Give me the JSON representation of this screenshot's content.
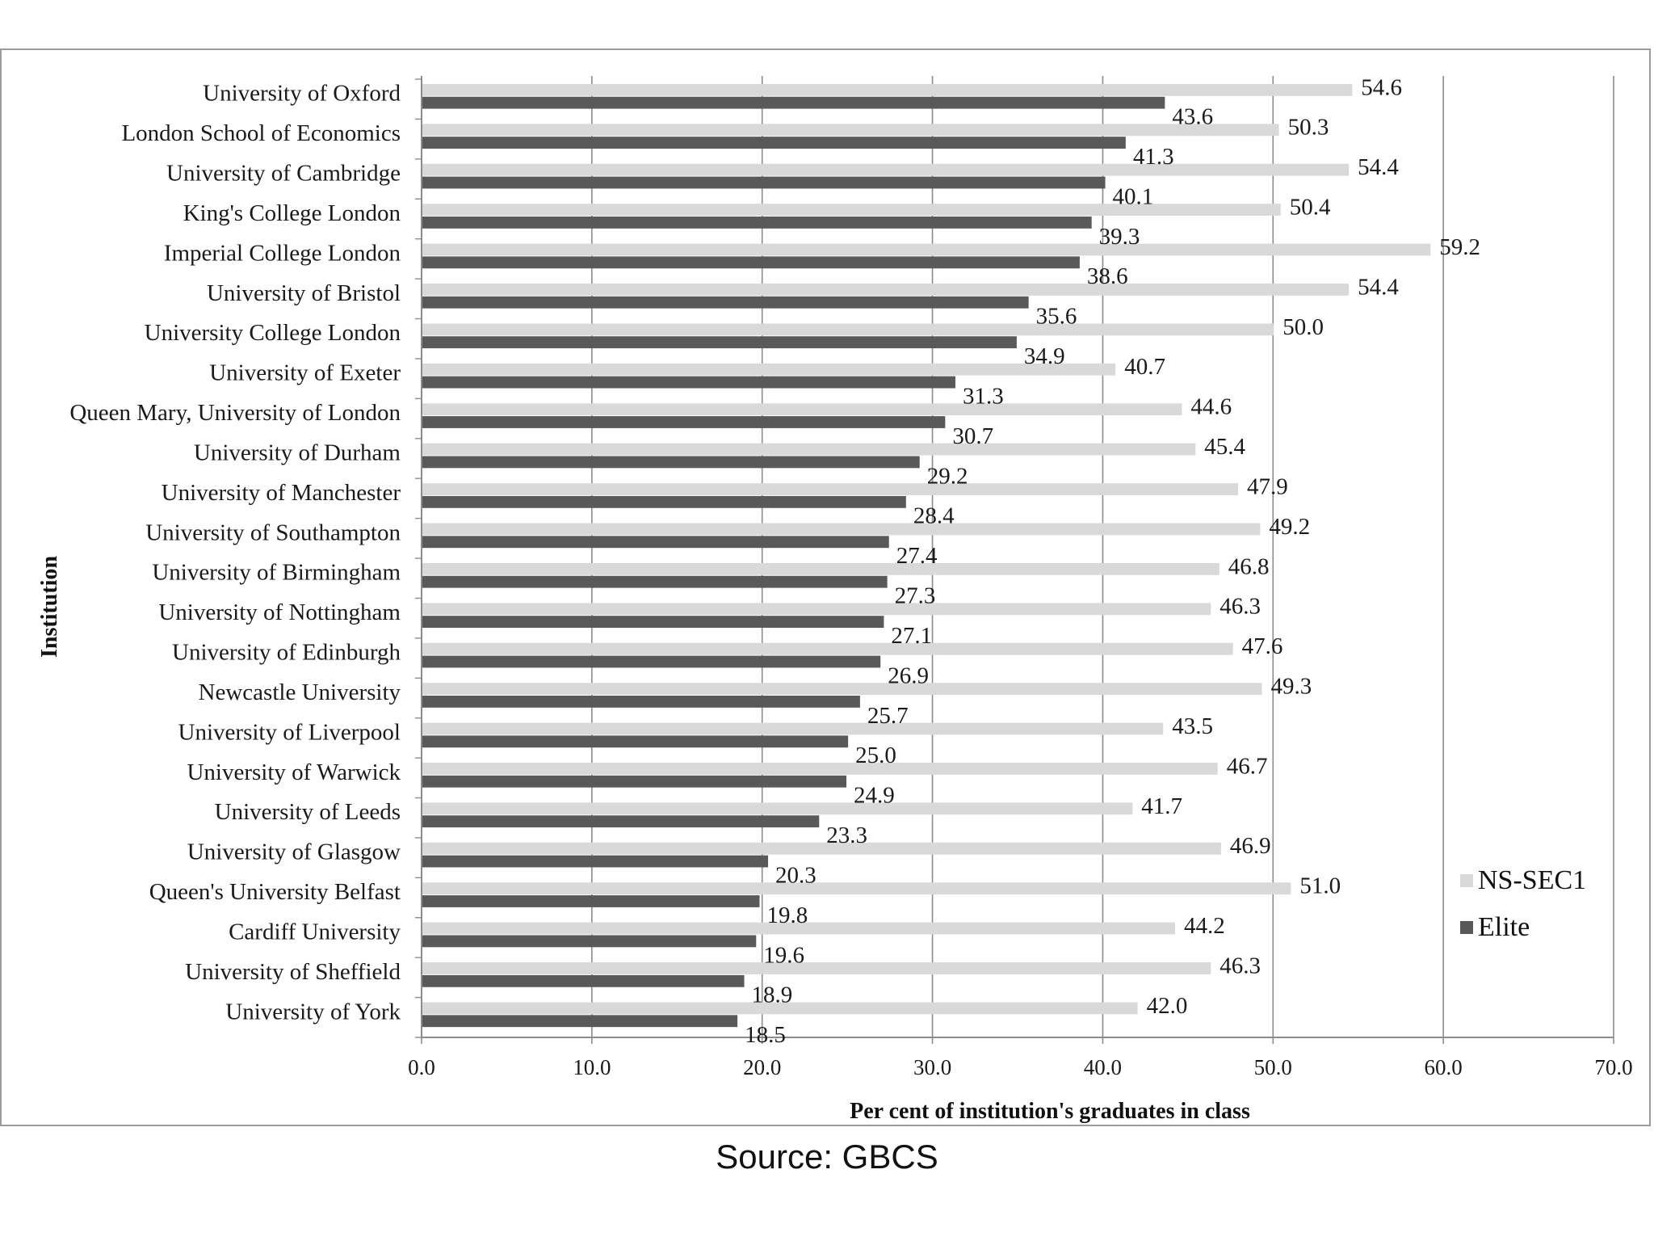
{
  "source_note": "Source: GBCS",
  "chart_data": {
    "type": "bar",
    "orientation": "horizontal",
    "categories": [
      "University of Oxford",
      "London School of Economics",
      "University of Cambridge",
      "King's College London",
      "Imperial College London",
      "University of Bristol",
      "University College London",
      "University of Exeter",
      "Queen Mary, University of London",
      "University of Durham",
      "University of Manchester",
      "University of Southampton",
      "University of Birmingham",
      "University of Nottingham",
      "University of Edinburgh",
      "Newcastle University",
      "University of Liverpool",
      "University of Warwick",
      "University of Leeds",
      "University of Glasgow",
      "Queen's University Belfast",
      "Cardiff University",
      "University of Sheffield",
      "University of York"
    ],
    "series": [
      {
        "name": "NS-SEC1",
        "color": "#d9d9d9",
        "values": [
          54.6,
          50.3,
          54.4,
          50.4,
          59.2,
          54.4,
          50.0,
          40.7,
          44.6,
          45.4,
          47.9,
          49.2,
          46.8,
          46.3,
          47.6,
          49.3,
          43.5,
          46.7,
          41.7,
          46.9,
          51.0,
          44.2,
          46.3,
          42.0
        ],
        "labels": [
          "54.6",
          "50.3",
          "54.4",
          "50.4",
          "59.2",
          "54.4",
          "50.0",
          "40.7",
          "44.6",
          "45.4",
          "47.9",
          "49.2",
          "46.8",
          "46.3",
          "47.6",
          "49.3",
          "43.5",
          "46.7",
          "41.7",
          "46.9",
          "51.0",
          "44.2",
          "46.3",
          "42.0"
        ]
      },
      {
        "name": "Elite",
        "color": "#595959",
        "values": [
          43.6,
          41.3,
          40.1,
          39.3,
          38.6,
          35.6,
          34.9,
          31.3,
          30.7,
          29.2,
          28.4,
          27.4,
          27.3,
          27.1,
          26.9,
          25.7,
          25.0,
          24.9,
          23.3,
          20.3,
          19.8,
          19.6,
          18.9,
          18.5
        ],
        "labels": [
          "43.6",
          "41.3",
          "40.1",
          "39.3",
          "38.6",
          "35.6",
          "34.9",
          "31.3",
          "30.7",
          "29.2",
          "28.4",
          "27.4",
          "27.3",
          "27.1",
          "26.9",
          "25.7",
          "25.0",
          "24.9",
          "23.3",
          "20.3",
          "19.8",
          "19.6",
          "18.9",
          "18.5"
        ]
      }
    ],
    "xlabel": "Per cent of institution's graduates in class",
    "ylabel": "Institution",
    "xlim": [
      0,
      70
    ],
    "xticks": [
      "0.0",
      "10.0",
      "20.0",
      "30.0",
      "40.0",
      "50.0",
      "60.0",
      "70.0"
    ],
    "grid": "vertical",
    "legend_position": "right",
    "gridline_color": "#8c8c8c"
  }
}
